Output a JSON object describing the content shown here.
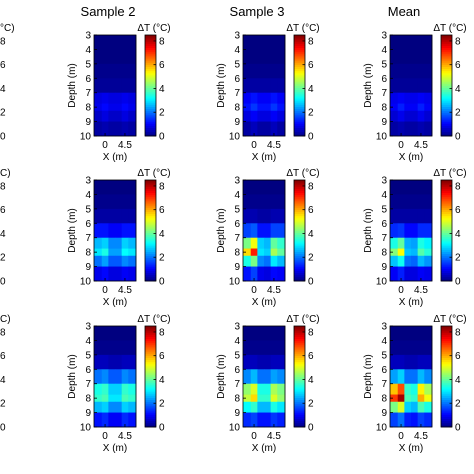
{
  "figure": {
    "column_titles": [
      "Sample 2",
      "Sample 3",
      "Mean"
    ]
  },
  "chart_data": {
    "type": "heatmap",
    "xlabel": "X (m)",
    "ylabel": "Depth (m)",
    "x_ticks": [
      "0",
      "4.5"
    ],
    "y_ticks": [
      "3",
      "4",
      "5",
      "6",
      "7",
      "8",
      "9",
      "10"
    ],
    "xlim": [
      -2.5,
      7
    ],
    "ylim": [
      3,
      10
    ],
    "colorbar": {
      "label": "ΔT (°C)",
      "ticks": [
        "0",
        "2",
        "4",
        "6",
        "8"
      ],
      "range": [
        0,
        8.5
      ],
      "colormap": "jet"
    },
    "cell_x_centers": [
      -1.5,
      0,
      1.5,
      3,
      4.5,
      6
    ],
    "cell_depth_centers": [
      3.5,
      4.5,
      5.5,
      6.5,
      7.5,
      8.0,
      8.5,
      9.5
    ],
    "panels": [
      {
        "row": 0,
        "col": 0,
        "title": "Sample 2",
        "values": [
          [
            0.0,
            0.0,
            0.0,
            0.0,
            0.0,
            0.0
          ],
          [
            0.0,
            0.0,
            0.0,
            0.0,
            0.0,
            0.0
          ],
          [
            0.1,
            0.1,
            0.1,
            0.1,
            0.1,
            0.1
          ],
          [
            0.2,
            0.2,
            0.2,
            0.2,
            0.2,
            0.2
          ],
          [
            0.8,
            0.9,
            0.8,
            0.8,
            0.9,
            0.8
          ],
          [
            0.9,
            1.1,
            0.9,
            0.9,
            1.1,
            0.9
          ],
          [
            0.6,
            0.8,
            0.6,
            0.6,
            0.8,
            0.6
          ],
          [
            0.3,
            0.4,
            0.3,
            0.3,
            0.4,
            0.3
          ]
        ]
      },
      {
        "row": 0,
        "col": 1,
        "title": "Sample 3",
        "values": [
          [
            0.0,
            0.0,
            0.0,
            0.0,
            0.0,
            0.0
          ],
          [
            0.0,
            0.0,
            0.0,
            0.0,
            0.0,
            0.0
          ],
          [
            0.1,
            0.1,
            0.1,
            0.1,
            0.1,
            0.1
          ],
          [
            0.3,
            0.3,
            0.3,
            0.3,
            0.3,
            0.3
          ],
          [
            1.0,
            1.2,
            1.0,
            1.0,
            1.2,
            1.0
          ],
          [
            1.2,
            1.5,
            1.2,
            1.2,
            1.5,
            1.2
          ],
          [
            0.8,
            1.0,
            0.8,
            0.8,
            1.0,
            0.8
          ],
          [
            0.3,
            0.5,
            0.3,
            0.3,
            0.5,
            0.3
          ]
        ]
      },
      {
        "row": 0,
        "col": 2,
        "title": "Mean",
        "values": [
          [
            0.0,
            0.0,
            0.0,
            0.0,
            0.0,
            0.0
          ],
          [
            0.0,
            0.0,
            0.0,
            0.0,
            0.0,
            0.0
          ],
          [
            0.1,
            0.1,
            0.1,
            0.1,
            0.1,
            0.1
          ],
          [
            0.2,
            0.2,
            0.2,
            0.2,
            0.2,
            0.2
          ],
          [
            0.9,
            1.0,
            0.9,
            0.9,
            1.0,
            0.9
          ],
          [
            1.0,
            1.3,
            1.0,
            1.0,
            1.3,
            1.0
          ],
          [
            0.7,
            0.9,
            0.7,
            0.7,
            0.9,
            0.7
          ],
          [
            0.3,
            0.4,
            0.3,
            0.3,
            0.4,
            0.3
          ]
        ]
      },
      {
        "row": 1,
        "col": 0,
        "title": "",
        "values": [
          [
            0.0,
            0.0,
            0.0,
            0.0,
            0.0,
            0.0
          ],
          [
            0.1,
            0.1,
            0.1,
            0.1,
            0.1,
            0.1
          ],
          [
            0.3,
            0.3,
            0.3,
            0.3,
            0.3,
            0.3
          ],
          [
            1.2,
            1.2,
            1.0,
            1.0,
            1.2,
            1.2
          ],
          [
            2.6,
            2.8,
            2.2,
            2.2,
            2.8,
            2.6
          ],
          [
            3.0,
            3.4,
            2.4,
            2.4,
            3.2,
            3.0
          ],
          [
            2.0,
            2.4,
            1.8,
            1.8,
            2.2,
            2.0
          ],
          [
            0.9,
            1.1,
            0.8,
            0.8,
            1.0,
            0.9
          ]
        ]
      },
      {
        "row": 1,
        "col": 1,
        "title": "",
        "values": [
          [
            0.0,
            0.0,
            0.0,
            0.0,
            0.0,
            0.0
          ],
          [
            0.1,
            0.1,
            0.1,
            0.1,
            0.1,
            0.1
          ],
          [
            0.4,
            0.4,
            0.3,
            0.3,
            0.4,
            0.4
          ],
          [
            1.6,
            1.8,
            1.2,
            1.2,
            1.6,
            1.6
          ],
          [
            4.2,
            5.2,
            2.8,
            2.6,
            4.0,
            3.6
          ],
          [
            5.6,
            7.2,
            3.0,
            2.8,
            4.6,
            4.0
          ],
          [
            3.4,
            4.2,
            2.2,
            2.0,
            3.0,
            2.6
          ],
          [
            1.2,
            1.6,
            0.9,
            0.8,
            1.1,
            1.0
          ]
        ]
      },
      {
        "row": 1,
        "col": 2,
        "title": "",
        "values": [
          [
            0.0,
            0.0,
            0.0,
            0.0,
            0.0,
            0.0
          ],
          [
            0.1,
            0.1,
            0.1,
            0.1,
            0.1,
            0.1
          ],
          [
            0.3,
            0.3,
            0.3,
            0.3,
            0.3,
            0.3
          ],
          [
            1.4,
            1.5,
            1.1,
            1.1,
            1.4,
            1.4
          ],
          [
            3.4,
            4.0,
            2.5,
            2.4,
            3.4,
            3.1
          ],
          [
            4.3,
            5.3,
            2.7,
            2.6,
            3.9,
            3.5
          ],
          [
            2.7,
            3.3,
            2.0,
            1.9,
            2.6,
            2.3
          ],
          [
            1.0,
            1.3,
            0.8,
            0.8,
            1.0,
            0.9
          ]
        ]
      },
      {
        "row": 2,
        "col": 0,
        "title": "",
        "values": [
          [
            0.0,
            0.0,
            0.0,
            0.0,
            0.0,
            0.0
          ],
          [
            0.1,
            0.1,
            0.1,
            0.1,
            0.1,
            0.1
          ],
          [
            0.5,
            0.5,
            0.4,
            0.4,
            0.5,
            0.5
          ],
          [
            2.0,
            2.2,
            1.8,
            1.8,
            2.2,
            2.0
          ],
          [
            3.4,
            3.6,
            2.8,
            2.8,
            3.6,
            3.4
          ],
          [
            3.6,
            3.8,
            3.0,
            3.0,
            3.8,
            3.6
          ],
          [
            2.6,
            2.8,
            2.2,
            2.2,
            2.8,
            2.6
          ],
          [
            1.2,
            1.4,
            1.0,
            1.0,
            1.4,
            1.2
          ]
        ]
      },
      {
        "row": 2,
        "col": 1,
        "title": "",
        "values": [
          [
            0.0,
            0.0,
            0.0,
            0.0,
            0.0,
            0.0
          ],
          [
            0.1,
            0.1,
            0.1,
            0.1,
            0.1,
            0.1
          ],
          [
            0.5,
            0.5,
            0.4,
            0.4,
            0.5,
            0.5
          ],
          [
            2.2,
            2.6,
            2.0,
            2.0,
            2.4,
            2.2
          ],
          [
            4.4,
            5.0,
            3.4,
            3.4,
            4.6,
            4.2
          ],
          [
            4.8,
            5.6,
            3.6,
            3.6,
            5.0,
            4.4
          ],
          [
            3.2,
            3.6,
            2.6,
            2.6,
            3.4,
            3.0
          ],
          [
            1.4,
            1.6,
            1.2,
            1.2,
            1.5,
            1.3
          ]
        ]
      },
      {
        "row": 2,
        "col": 2,
        "title": "",
        "values": [
          [
            0.0,
            0.0,
            0.0,
            0.0,
            0.0,
            0.0
          ],
          [
            0.1,
            0.1,
            0.1,
            0.1,
            0.1,
            0.1
          ],
          [
            0.5,
            0.5,
            0.4,
            0.4,
            0.5,
            0.5
          ],
          [
            2.4,
            2.8,
            2.0,
            2.0,
            2.6,
            2.2
          ],
          [
            5.8,
            6.8,
            3.6,
            3.4,
            5.4,
            4.6
          ],
          [
            7.0,
            8.2,
            3.8,
            3.6,
            6.0,
            5.2
          ],
          [
            4.2,
            5.0,
            2.8,
            2.6,
            3.8,
            3.4
          ],
          [
            1.6,
            2.0,
            1.3,
            1.2,
            1.6,
            1.4
          ]
        ]
      }
    ],
    "cut_off_left_column": {
      "colorbar_label_fragment": "°C)",
      "colorbar_ticks": [
        "0",
        "2",
        "4",
        "6",
        "8"
      ],
      "title_fragment": "C)"
    }
  }
}
